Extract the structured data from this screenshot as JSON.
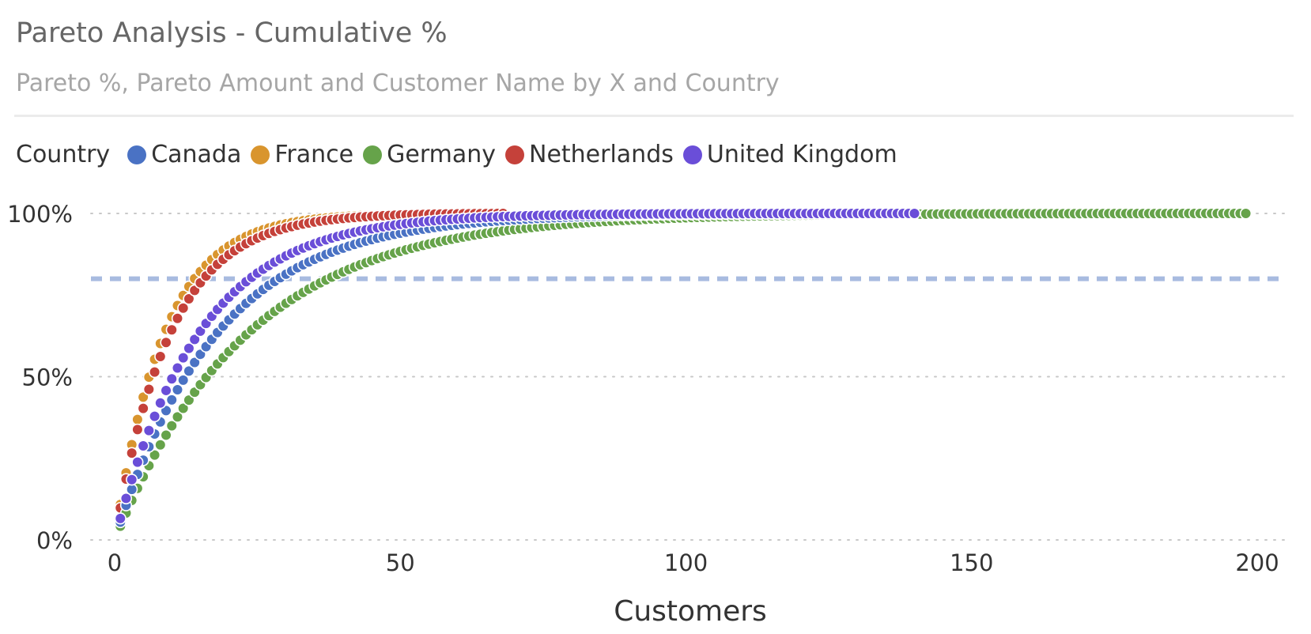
{
  "header": {
    "title": "Pareto Analysis - Cumulative %",
    "subtitle": "Pareto %, Pareto Amount and Customer Name by X and Country"
  },
  "legend": {
    "title": "Country",
    "items": [
      {
        "label": "Canada",
        "color": "#4a72c4"
      },
      {
        "label": "France",
        "color": "#d9952e"
      },
      {
        "label": "Germany",
        "color": "#66a34a"
      },
      {
        "label": "Netherlands",
        "color": "#c5413a"
      },
      {
        "label": "United Kingdom",
        "color": "#6a4ed8"
      }
    ]
  },
  "chart_data": {
    "type": "scatter",
    "title": "Pareto Analysis - Cumulative %",
    "subtitle": "Pareto %, Pareto Amount and Customer Name by X and Country",
    "xlabel": "Customers",
    "ylabel": "",
    "xlim": [
      0,
      200
    ],
    "ylim": [
      0,
      100
    ],
    "x_ticks": [
      0,
      50,
      100,
      150,
      200
    ],
    "x_tick_labels": [
      "0",
      "50",
      "100",
      "150",
      "200"
    ],
    "y_ticks": [
      0,
      50,
      100
    ],
    "y_tick_labels": [
      "0%",
      "50%",
      "100%"
    ],
    "grid": "horizontal dotted",
    "legend_position": "top-left",
    "reference_line": {
      "y": 80,
      "style": "dashed",
      "color": "#a8bbe0"
    },
    "series": [
      {
        "name": "Canada",
        "color": "#4a72c4",
        "count": 140,
        "rate": 0.056
      },
      {
        "name": "France",
        "color": "#d9952e",
        "count": 68,
        "rate": 0.115
      },
      {
        "name": "Germany",
        "color": "#66a34a",
        "count": 198,
        "rate": 0.043
      },
      {
        "name": "Netherlands",
        "color": "#c5413a",
        "count": 68,
        "rate": 0.103
      },
      {
        "name": "United Kingdom",
        "color": "#6a4ed8",
        "count": 140,
        "rate": 0.068
      }
    ]
  }
}
